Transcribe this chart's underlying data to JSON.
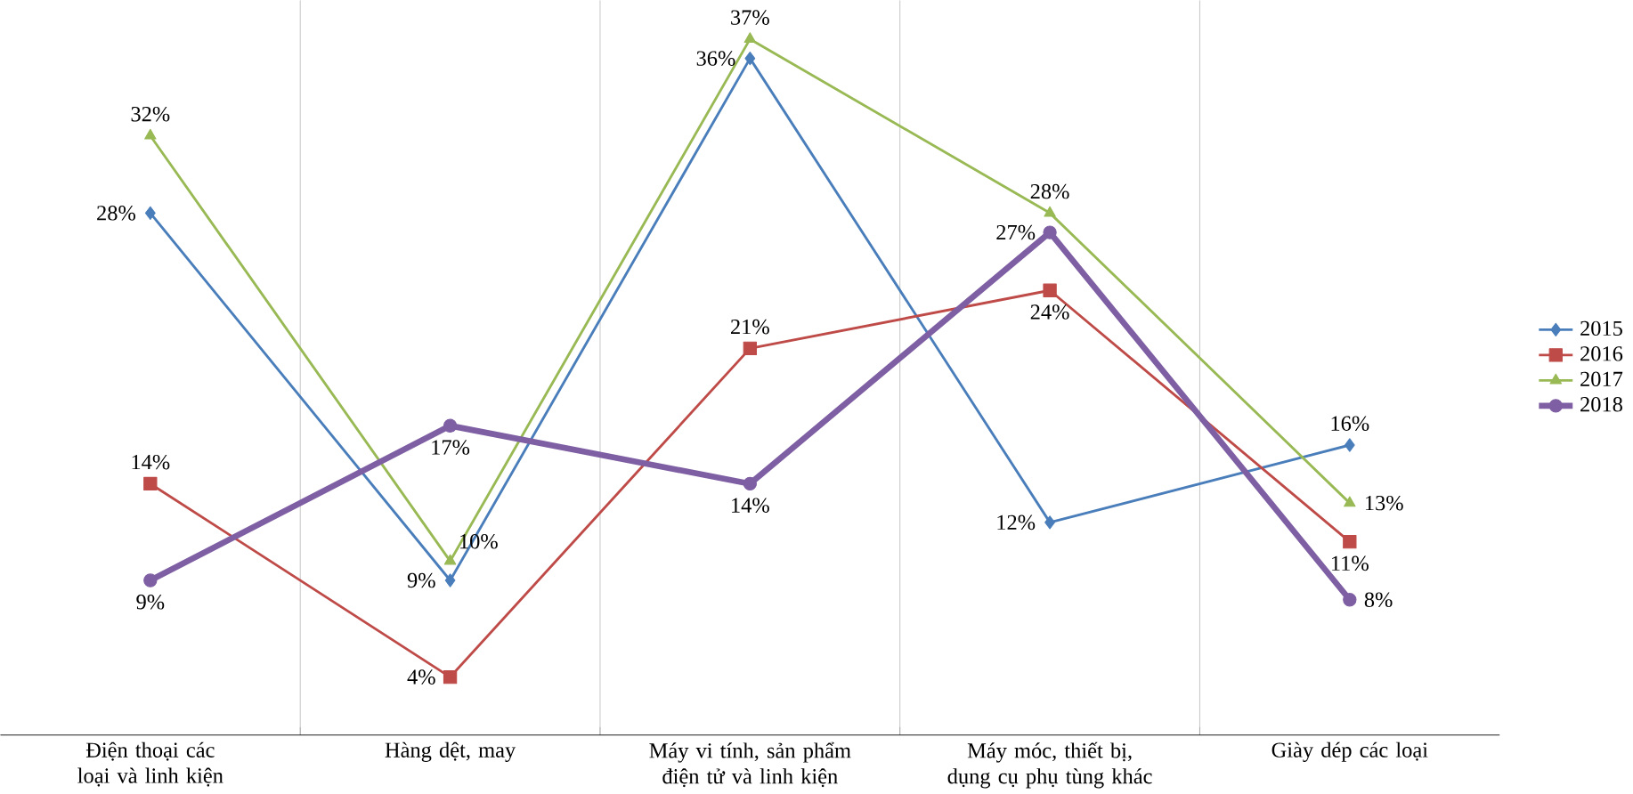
{
  "chart_data": {
    "type": "line",
    "categories": [
      "Điện thoại các loại và linh kiện",
      "Hàng dệt, may",
      "Máy vi tính, sản phẩm điện tử và linh kiện",
      "Máy móc, thiết bị, dụng cụ phụ tùng khác",
      "Giày dép các loại"
    ],
    "series": [
      {
        "name": "2015",
        "color": "#4a7ebb",
        "marker": "diamond",
        "values": [
          28,
          9,
          36,
          12,
          16
        ],
        "value_labels": [
          "28%",
          "9%",
          "36%",
          "12%",
          "16%"
        ]
      },
      {
        "name": "2016",
        "color": "#be4b48",
        "marker": "square",
        "values": [
          14,
          4,
          21,
          24,
          11
        ],
        "value_labels": [
          "14%",
          "4%",
          "21%",
          "24%",
          "11%"
        ]
      },
      {
        "name": "2017",
        "color": "#98b954",
        "marker": "triangle",
        "values": [
          32,
          10,
          37,
          28,
          13
        ],
        "value_labels": [
          "32%",
          "10%",
          "37%",
          "28%",
          "13%"
        ]
      },
      {
        "name": "2018",
        "color": "#7f5fa3",
        "marker": "circle",
        "values": [
          9,
          17,
          14,
          27,
          8
        ],
        "value_labels": [
          "9%",
          "17%",
          "14%",
          "27%",
          "8%"
        ]
      }
    ],
    "ylim": [
      1,
      39
    ],
    "tick_labels": "x",
    "grid": "x",
    "legend": "right"
  }
}
